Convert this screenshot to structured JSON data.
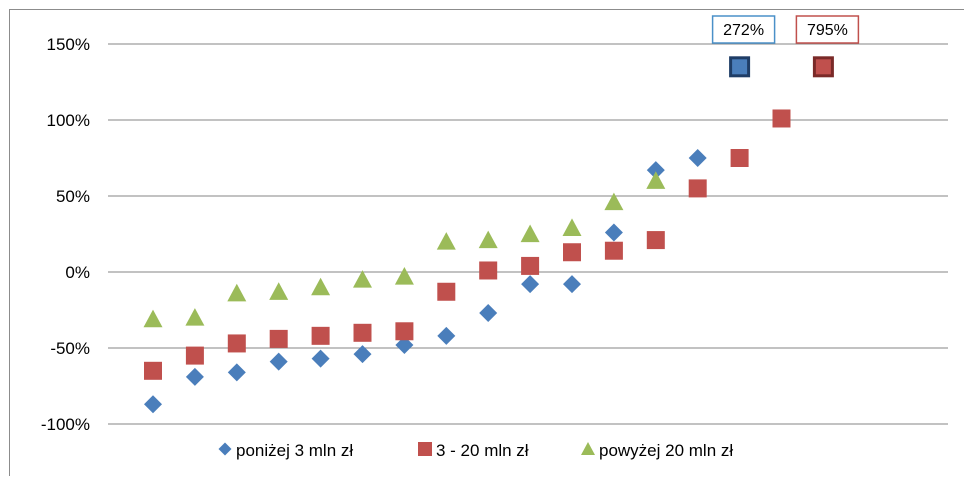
{
  "chart_data": {
    "type": "scatter",
    "ylim": [
      -100,
      150
    ],
    "yticks": [
      "150%",
      "100%",
      "50%",
      "0%",
      "-50%",
      "-100%"
    ],
    "ytick_values": [
      150,
      100,
      50,
      0,
      -50,
      -100
    ],
    "grid": true,
    "legend_position": "bottom",
    "series": [
      {
        "name": "poniżej 3 mln zł",
        "marker": "diamond",
        "color": "#4a7ebb",
        "x": [
          1,
          2,
          3,
          4,
          5,
          6,
          7,
          8,
          9,
          10,
          11,
          12,
          13,
          14,
          15
        ],
        "values": [
          -87,
          -69,
          -66,
          -59,
          -57,
          -54,
          -48,
          -42,
          -27,
          -8,
          -8,
          26,
          67,
          75,
          135
        ]
      },
      {
        "name": "3 - 20 mln zł",
        "marker": "square",
        "color": "#c0504d",
        "x": [
          1,
          2,
          3,
          4,
          5,
          6,
          7,
          8,
          9,
          10,
          11,
          12,
          13,
          14,
          15,
          16,
          17
        ],
        "values": [
          -65,
          -55,
          -47,
          -44,
          -42,
          -40,
          -39,
          -13,
          1,
          4,
          13,
          14,
          21,
          55,
          75,
          101,
          135
        ]
      },
      {
        "name": "powyżej 20 mln zł",
        "marker": "triangle",
        "color": "#9bbb59",
        "x": [
          1,
          2,
          3,
          4,
          5,
          6,
          7,
          8,
          9,
          10,
          11,
          12,
          13
        ],
        "values": [
          -31,
          -30,
          -14,
          -13,
          -10,
          -5,
          -3,
          20,
          21,
          25,
          29,
          46,
          60
        ]
      }
    ],
    "annotations": [
      {
        "text": "272%",
        "series": 0,
        "point_index": 14,
        "border_color": "#4a90c8"
      },
      {
        "text": "795%",
        "series": 1,
        "point_index": 16,
        "border_color": "#c0504d"
      }
    ]
  }
}
